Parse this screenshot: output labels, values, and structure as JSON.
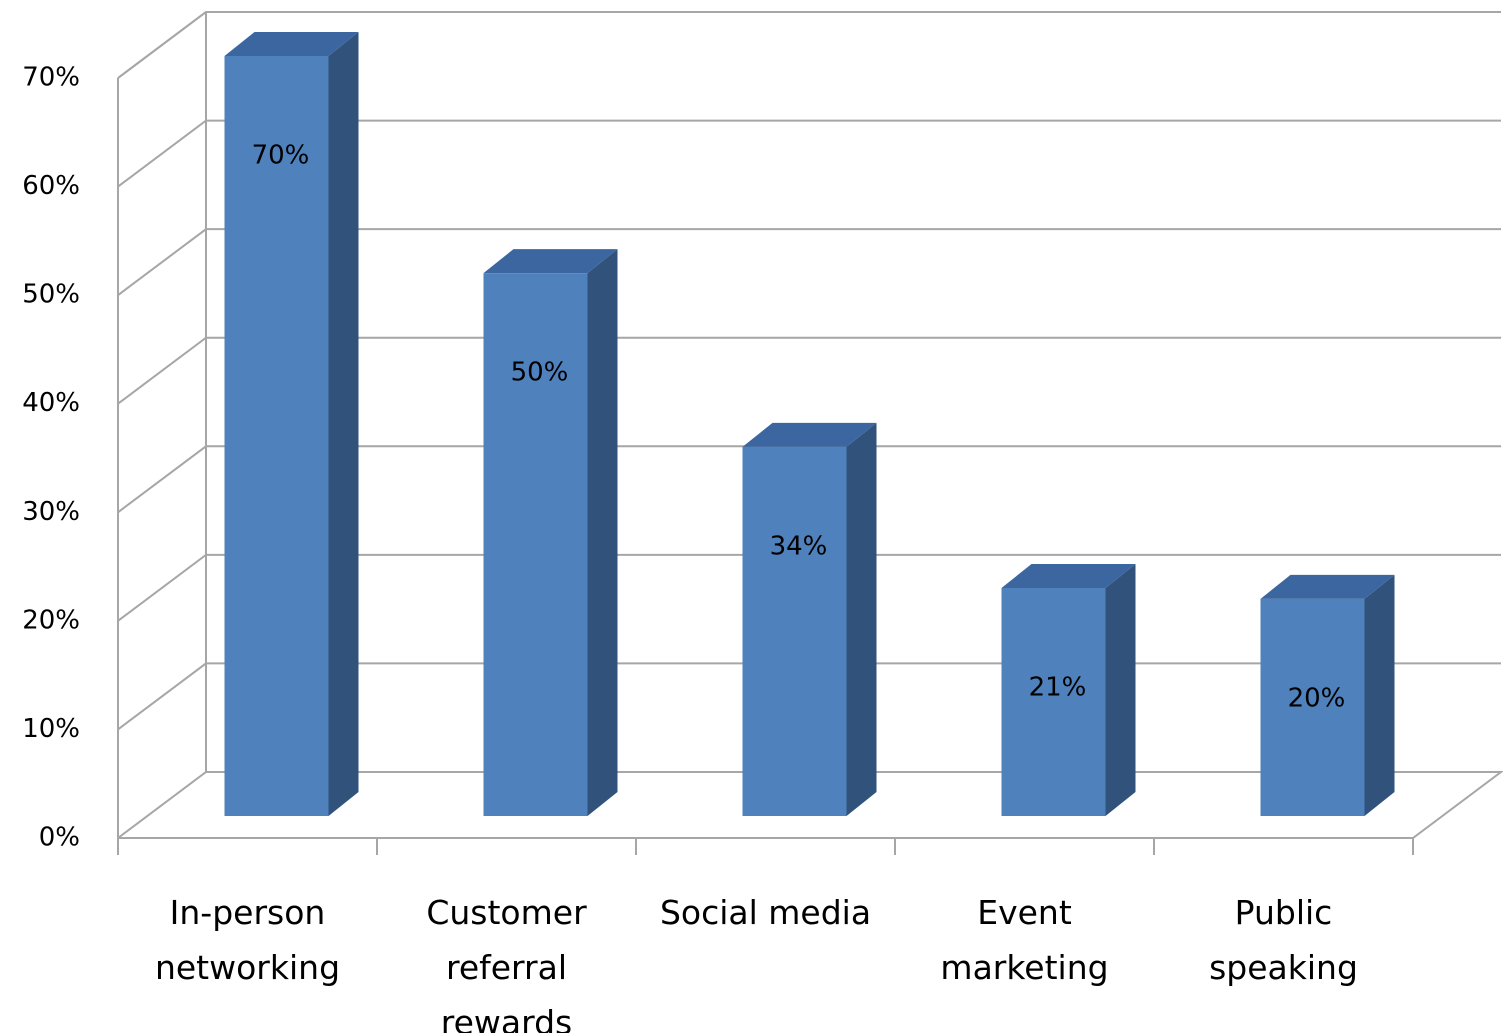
{
  "chart_data": {
    "type": "bar3d",
    "categories": [
      "In-person networking",
      "Customer referral rewards",
      "Social media",
      "Event marketing",
      "Public speaking"
    ],
    "values": [
      70,
      50,
      34,
      21,
      20
    ],
    "value_labels": [
      "70%",
      "50%",
      "34%",
      "21%",
      "20%"
    ],
    "color": "#4f81bd",
    "ylim": [
      0,
      70
    ],
    "yticks": [
      {
        "value": 0,
        "label": "0%"
      },
      {
        "value": 10,
        "label": "10%"
      },
      {
        "value": 20,
        "label": "20%"
      },
      {
        "value": 30,
        "label": "30%"
      },
      {
        "value": 40,
        "label": "40%"
      },
      {
        "value": 50,
        "label": "50%"
      },
      {
        "value": 60,
        "label": "60%"
      },
      {
        "value": 70,
        "label": "70%"
      }
    ],
    "grid": true
  }
}
